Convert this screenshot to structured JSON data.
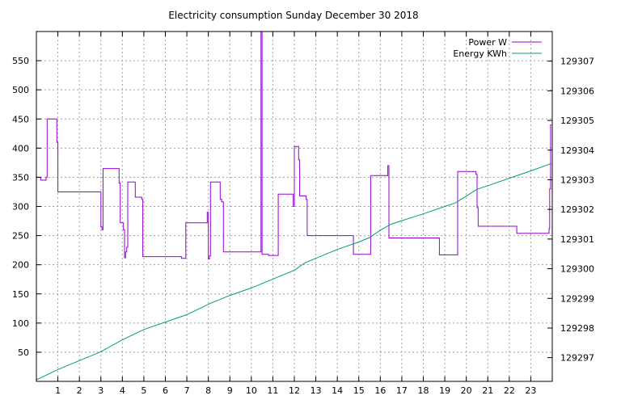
{
  "chart_data": {
    "type": "line",
    "title": "Electricity consumption Sunday December 30 2018",
    "xlabel": "",
    "ylabel": "",
    "xlim": [
      0,
      24
    ],
    "ylim": [
      0,
      600
    ],
    "y2lim": [
      129296.2,
      129308.0
    ],
    "grid": true,
    "legend_position": "top-right",
    "x_ticks": [
      1,
      2,
      3,
      4,
      5,
      6,
      7,
      8,
      9,
      10,
      11,
      12,
      13,
      14,
      15,
      16,
      17,
      18,
      19,
      20,
      21,
      22,
      23
    ],
    "y_ticks": [
      50,
      100,
      150,
      200,
      250,
      300,
      350,
      400,
      450,
      500,
      550
    ],
    "y2_ticks": [
      129297,
      129298,
      129299,
      129300,
      129301,
      129302,
      129303,
      129304,
      129305,
      129306,
      129307
    ],
    "series": [
      {
        "name": "Power W",
        "color": "#9400d3",
        "axis": "y",
        "points": [
          [
            0.0,
            350
          ],
          [
            0.2,
            350
          ],
          [
            0.2,
            345
          ],
          [
            0.45,
            345
          ],
          [
            0.45,
            350
          ],
          [
            0.5,
            350
          ],
          [
            0.5,
            450
          ],
          [
            0.95,
            450
          ],
          [
            0.95,
            410
          ],
          [
            1.0,
            410
          ],
          [
            1.0,
            325
          ],
          [
            3.0,
            325
          ],
          [
            3.0,
            265
          ],
          [
            3.05,
            265
          ],
          [
            3.05,
            260
          ],
          [
            3.1,
            260
          ],
          [
            3.1,
            365
          ],
          [
            3.85,
            365
          ],
          [
            3.85,
            340
          ],
          [
            3.9,
            340
          ],
          [
            3.9,
            272
          ],
          [
            4.05,
            272
          ],
          [
            4.05,
            260
          ],
          [
            4.1,
            260
          ],
          [
            4.1,
            212
          ],
          [
            4.15,
            212
          ],
          [
            4.15,
            222
          ],
          [
            4.2,
            222
          ],
          [
            4.2,
            230
          ],
          [
            4.25,
            230
          ],
          [
            4.25,
            342
          ],
          [
            4.6,
            342
          ],
          [
            4.6,
            316
          ],
          [
            4.9,
            316
          ],
          [
            4.9,
            312
          ],
          [
            4.95,
            312
          ],
          [
            4.95,
            214
          ],
          [
            6.75,
            214
          ],
          [
            6.75,
            211
          ],
          [
            6.95,
            211
          ],
          [
            6.95,
            272
          ],
          [
            7.95,
            272
          ],
          [
            7.95,
            290
          ],
          [
            8.0,
            290
          ],
          [
            8.0,
            210
          ],
          [
            8.05,
            210
          ],
          [
            8.05,
            215
          ],
          [
            8.1,
            215
          ],
          [
            8.1,
            342
          ],
          [
            8.55,
            342
          ],
          [
            8.55,
            312
          ],
          [
            8.62,
            312
          ],
          [
            8.62,
            308
          ],
          [
            8.7,
            308
          ],
          [
            8.7,
            222
          ],
          [
            10.45,
            222
          ],
          [
            10.45,
            600
          ],
          [
            10.5,
            600
          ],
          [
            10.5,
            218
          ],
          [
            10.8,
            218
          ],
          [
            10.8,
            216
          ],
          [
            11.25,
            216
          ],
          [
            11.25,
            321
          ],
          [
            11.95,
            321
          ],
          [
            11.95,
            300
          ],
          [
            12.0,
            300
          ],
          [
            12.0,
            403
          ],
          [
            12.2,
            403
          ],
          [
            12.2,
            380
          ],
          [
            12.25,
            380
          ],
          [
            12.25,
            318
          ],
          [
            12.55,
            318
          ],
          [
            12.55,
            312
          ],
          [
            12.6,
            312
          ],
          [
            12.6,
            250
          ],
          [
            14.75,
            250
          ],
          [
            14.75,
            218
          ],
          [
            15.55,
            218
          ],
          [
            15.55,
            353
          ],
          [
            16.35,
            353
          ],
          [
            16.35,
            370
          ],
          [
            16.4,
            370
          ],
          [
            16.4,
            246
          ],
          [
            18.75,
            246
          ],
          [
            18.75,
            217
          ],
          [
            19.6,
            217
          ],
          [
            19.6,
            360
          ],
          [
            20.45,
            360
          ],
          [
            20.45,
            355
          ],
          [
            20.5,
            355
          ],
          [
            20.5,
            298
          ],
          [
            20.55,
            298
          ],
          [
            20.55,
            266
          ],
          [
            22.35,
            266
          ],
          [
            22.35,
            254
          ],
          [
            23.85,
            254
          ],
          [
            23.85,
            262
          ],
          [
            23.88,
            262
          ],
          [
            23.88,
            330
          ],
          [
            23.92,
            330
          ],
          [
            23.92,
            440
          ],
          [
            23.96,
            440
          ]
        ]
      },
      {
        "name": "Energy KWh",
        "color": "#009e73",
        "axis": "y2",
        "points": [
          [
            0.0,
            129296.25
          ],
          [
            1.0,
            129296.6
          ],
          [
            2.0,
            129296.9
          ],
          [
            3.0,
            129297.2
          ],
          [
            4.0,
            129297.6
          ],
          [
            5.0,
            129297.95
          ],
          [
            6.0,
            129298.2
          ],
          [
            7.0,
            129298.45
          ],
          [
            8.0,
            129298.8
          ],
          [
            9.0,
            129299.1
          ],
          [
            10.0,
            129299.35
          ],
          [
            11.0,
            129299.65
          ],
          [
            12.0,
            129299.95
          ],
          [
            12.5,
            129300.2
          ],
          [
            13.0,
            129300.35
          ],
          [
            14.0,
            129300.65
          ],
          [
            15.0,
            129300.9
          ],
          [
            15.5,
            129301.05
          ],
          [
            16.0,
            129301.3
          ],
          [
            16.5,
            129301.5
          ],
          [
            17.0,
            129301.62
          ],
          [
            18.0,
            129301.85
          ],
          [
            19.0,
            129302.1
          ],
          [
            19.5,
            129302.22
          ],
          [
            20.0,
            129302.45
          ],
          [
            20.5,
            129302.68
          ],
          [
            21.0,
            129302.8
          ],
          [
            22.0,
            129303.05
          ],
          [
            23.0,
            129303.3
          ],
          [
            23.96,
            129303.55
          ]
        ]
      }
    ]
  }
}
